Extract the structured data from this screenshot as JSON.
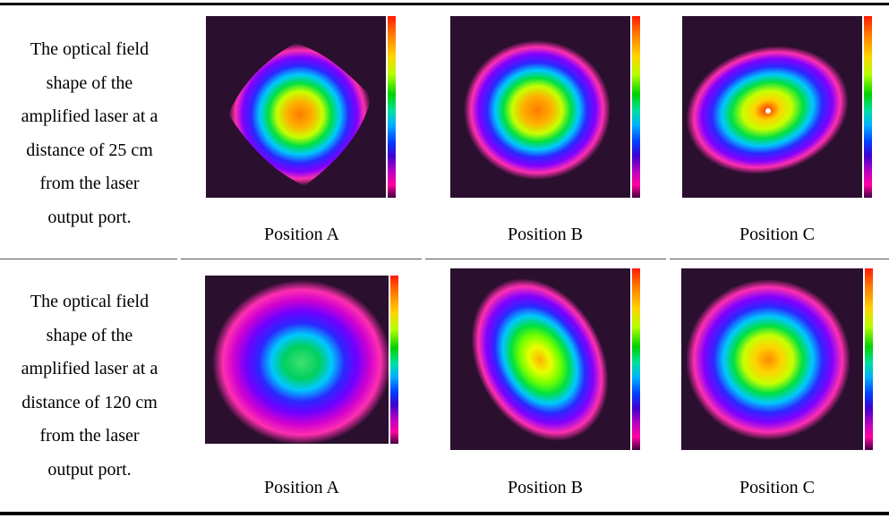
{
  "rows": [
    {
      "label_lines": [
        "The optical field",
        "shape of the",
        "amplified laser at a",
        "distance of 25 cm",
        "from the laser",
        "output port."
      ],
      "positions": [
        "Position A",
        "Position B",
        "Position C"
      ]
    },
    {
      "label_lines": [
        "The optical field",
        "shape of the",
        "amplified laser at a",
        "distance of 120 cm",
        "from the laser",
        "output port."
      ],
      "positions": [
        "Position A",
        "Position B",
        "Position C"
      ]
    }
  ],
  "colors": {
    "background": "#2a0f2e",
    "outer": "#ff2fb0",
    "ring_blue": "#2a28ff",
    "ring_cyan": "#00c8ff",
    "ring_green": "#00e040",
    "core_yellow": "#e8ff00",
    "core_orange": "#ff8a00"
  }
}
